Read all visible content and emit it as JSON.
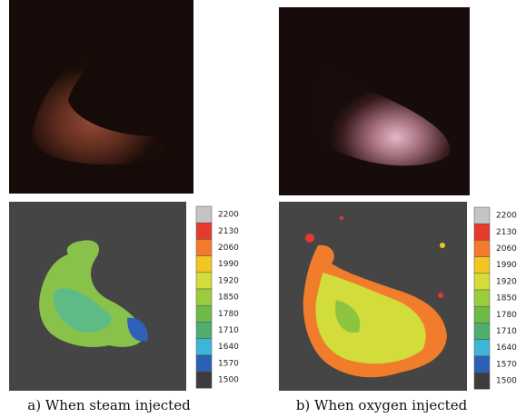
{
  "panels": [
    {
      "caption": "a) When steam injected"
    },
    {
      "caption": "b) When oxygen injected"
    }
  ],
  "colorbar": {
    "values": [
      2200,
      2130,
      2060,
      1990,
      1920,
      1850,
      1780,
      1710,
      1640,
      1570,
      1500
    ],
    "colors": [
      "#c4c4c4",
      "#e53a2c",
      "#f27a2a",
      "#f2c622",
      "#d2dc3a",
      "#9ccc3c",
      "#6cba48",
      "#4fae6e",
      "#3cb6d6",
      "#2c60b4",
      "#3c3c3c"
    ]
  }
}
